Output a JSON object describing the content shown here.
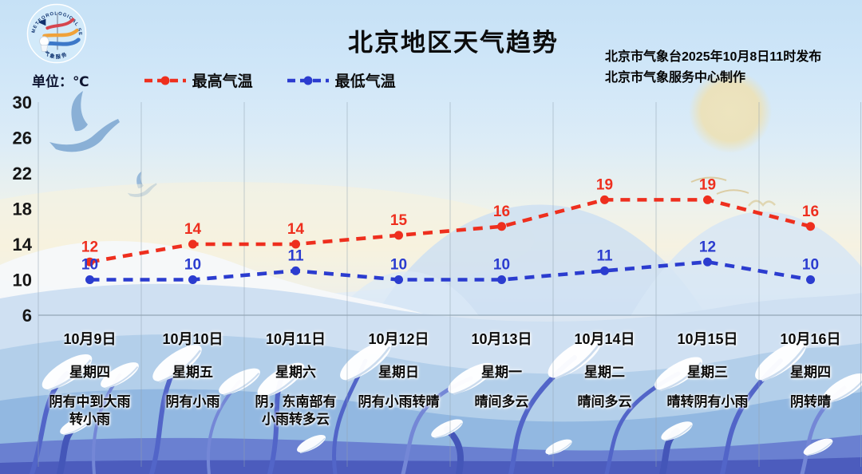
{
  "header": {
    "title": "北京地区天气趋势",
    "issued_line1": "北京市气象台2025年10月8日11时发布",
    "issued_line2": "北京市气象服务中心制作",
    "logo_text_top": "METEOROLOGICAL SERVICE",
    "logo_text_bottom": "气象服务"
  },
  "legend": {
    "unit_label": "单位：℃",
    "items": [
      {
        "label": "最高气温",
        "color": "#ee2f1e"
      },
      {
        "label": "最低气温",
        "color": "#2b3ccf"
      }
    ]
  },
  "chart_data": {
    "type": "line",
    "title": "北京地区天气趋势",
    "unit": "℃",
    "line_style": "dashed",
    "grid": "vertical-day-separators",
    "ylim": [
      6,
      30
    ],
    "y_ticks": [
      30,
      26,
      22,
      18,
      14,
      10,
      6
    ],
    "categories": [
      "10月9日",
      "10月10日",
      "10月11日",
      "10月12日",
      "10月13日",
      "10月14日",
      "10月15日",
      "10月16日"
    ],
    "weekdays": [
      "星期四",
      "星期五",
      "星期六",
      "星期日",
      "星期一",
      "星期二",
      "星期三",
      "星期四"
    ],
    "weather": [
      "阴有中到大雨\n转小雨",
      "阴有小雨",
      "阴，东南部有\n小雨转多云",
      "阴有小雨转晴",
      "晴间多云",
      "晴间多云",
      "晴转阴有小雨",
      "阴转晴"
    ],
    "series": [
      {
        "name": "最高气温",
        "color": "#ee2f1e",
        "values": [
          12,
          14,
          14,
          15,
          16,
          19,
          19,
          16
        ]
      },
      {
        "name": "最低气温",
        "color": "#2b3ccf",
        "values": [
          10,
          10,
          11,
          10,
          10,
          11,
          12,
          10
        ]
      }
    ]
  }
}
